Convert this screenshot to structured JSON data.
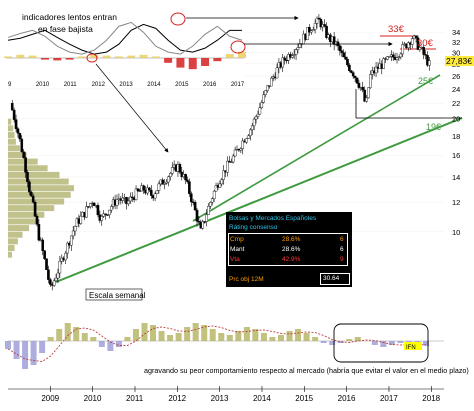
{
  "chart_data": {
    "type": "line",
    "subtype": "weekly-candlestick",
    "scale": "log",
    "x_ticks": [
      "2009",
      "2010",
      "2011",
      "2012",
      "2013",
      "2014",
      "2015",
      "2016",
      "2017",
      "2018"
    ],
    "y_ticks": [
      10,
      12,
      14,
      16,
      18,
      20,
      22,
      24,
      26,
      28,
      30,
      32,
      34
    ],
    "ylim": [
      7,
      38
    ],
    "series": [
      {
        "values": [
          [
            2008.1,
            22.0
          ],
          [
            2008.35,
            17.0
          ],
          [
            2008.55,
            13.0
          ],
          [
            2008.75,
            10.0
          ],
          [
            2008.95,
            8.0
          ],
          [
            2009.05,
            7.0
          ],
          [
            2009.25,
            8.0
          ],
          [
            2009.45,
            9.2
          ],
          [
            2009.65,
            10.5
          ],
          [
            2009.85,
            11.2
          ],
          [
            2010.05,
            12.2
          ],
          [
            2010.25,
            10.8
          ],
          [
            2010.45,
            11.6
          ],
          [
            2010.65,
            12.3
          ],
          [
            2010.85,
            11.9
          ],
          [
            2011.05,
            12.6
          ],
          [
            2011.25,
            13.0
          ],
          [
            2011.45,
            12.5
          ],
          [
            2011.65,
            13.4
          ],
          [
            2011.85,
            14.2
          ],
          [
            2012.05,
            15.0
          ],
          [
            2012.25,
            13.6
          ],
          [
            2012.45,
            11.5
          ],
          [
            2012.6,
            10.0
          ],
          [
            2012.8,
            11.8
          ],
          [
            2013.0,
            13.5
          ],
          [
            2013.2,
            14.8
          ],
          [
            2013.4,
            16.0
          ],
          [
            2013.6,
            17.5
          ],
          [
            2013.8,
            19.0
          ],
          [
            2014.0,
            21.5
          ],
          [
            2014.2,
            24.5
          ],
          [
            2014.4,
            27.0
          ],
          [
            2014.6,
            29.0
          ],
          [
            2014.8,
            30.5
          ],
          [
            2015.0,
            32.5
          ],
          [
            2015.2,
            35.0
          ],
          [
            2015.4,
            36.5
          ],
          [
            2015.6,
            33.0
          ],
          [
            2015.8,
            31.5
          ],
          [
            2016.0,
            28.5
          ],
          [
            2016.2,
            26.5
          ],
          [
            2016.4,
            24.0
          ],
          [
            2016.5,
            21.5
          ],
          [
            2016.6,
            26.0
          ],
          [
            2016.8,
            27.5
          ],
          [
            2017.0,
            28.5
          ],
          [
            2017.2,
            29.5
          ],
          [
            2017.4,
            31.0
          ],
          [
            2017.6,
            33.0
          ],
          [
            2017.8,
            30.5
          ],
          [
            2017.95,
            28.5
          ],
          [
            2018.0,
            27.83
          ]
        ]
      }
    ],
    "price_labels": {
      "last": "27,83€",
      "target_33": "33€",
      "target_30": "30€",
      "support_25": "25€",
      "support_19": "19€"
    },
    "annotations": {
      "top_left": "indicadores lentos entran\nen fase bajista",
      "scale_note": "Escala semanal",
      "bottom": "agravando su peor comportamiento respecto al mercado (habría que evitar el valor en el medio plazo)"
    },
    "inset": {
      "x_ticks": [
        "9",
        "2010",
        "2011",
        "2012",
        "2013",
        "2014",
        "2015",
        "2016",
        "2017"
      ],
      "slow_line": [
        0.55,
        0.6,
        0.7,
        0.8,
        0.62,
        0.45,
        0.3,
        0.2,
        0.25,
        0.45,
        0.8,
        0.95,
        0.85,
        0.55,
        0.3,
        0.25,
        0.35,
        0.55,
        0.8,
        0.8
      ],
      "fast_line": [
        0.62,
        0.72,
        0.8,
        0.65,
        0.4,
        0.25,
        0.2,
        0.3,
        0.55,
        0.9,
        1.0,
        0.75,
        0.4,
        0.25,
        0.2,
        0.4,
        0.7,
        0.9,
        0.65,
        0.55
      ],
      "histogram": [
        0.02,
        0.04,
        0.03,
        -0.02,
        -0.03,
        -0.02,
        0.02,
        0.04,
        0.03,
        0.02,
        0.03,
        0.04,
        0.02,
        -0.06,
        -0.12,
        -0.14,
        -0.1,
        -0.04,
        0.05,
        0.08
      ]
    },
    "consensus_panel": {
      "title": "Bolsas y Mercados Españoles",
      "subtitle": "Ráting consenso",
      "rows": [
        {
          "label": "Cmp",
          "pct": "28.6%",
          "count": "6"
        },
        {
          "label": "Mant",
          "pct": "28.6%",
          "count": "6"
        },
        {
          "label": "Vta",
          "pct": "42.9%",
          "count": "9"
        }
      ],
      "target_label": "Prc obj 12M",
      "target_value": "30.64"
    },
    "relative_strength": {
      "marker": "IFN",
      "values": [
        -0.4,
        -0.9,
        -1.4,
        -1.2,
        -0.6,
        0.2,
        0.6,
        0.9,
        0.7,
        0.4,
        0.2,
        -0.3,
        -0.5,
        -0.3,
        0.2,
        0.6,
        0.9,
        0.8,
        0.5,
        0.3,
        0.4,
        0.7,
        0.9,
        0.8,
        0.6,
        0.4,
        0.3,
        0.5,
        0.7,
        0.6,
        0.4,
        0.2,
        0.3,
        0.5,
        0.6,
        0.4,
        0.2,
        -0.1,
        -0.2,
        -0.1,
        0.1,
        0.2,
        0.0,
        -0.2,
        -0.3,
        -0.2,
        -0.1,
        -0.15,
        -0.2,
        -0.25
      ]
    },
    "volume_profile": [
      0.05,
      0.08,
      0.1,
      0.12,
      0.18,
      0.28,
      0.45,
      0.6,
      0.78,
      0.92,
      1.0,
      0.95,
      0.85,
      0.7,
      0.55,
      0.42,
      0.32,
      0.22,
      0.15,
      0.1,
      0.06
    ],
    "colors": {
      "candle_up": "#ffffff",
      "candle_down": "#000000",
      "trendline": "#3e9a3e",
      "target_line": "#d62020",
      "volume_profile": "#a6a65a",
      "panel_bg": "#000000",
      "panel_title": "#2ec4e8",
      "cmp": "#ff9e00",
      "mant": "#ffffff",
      "vta": "#ff3a3a",
      "target_value_bg": "#ffffff",
      "rs_bar": "#b3b35e",
      "rs_neg": "#9a9ad6",
      "rs_ma": "#c04040",
      "ifn": "#ffff00"
    }
  }
}
